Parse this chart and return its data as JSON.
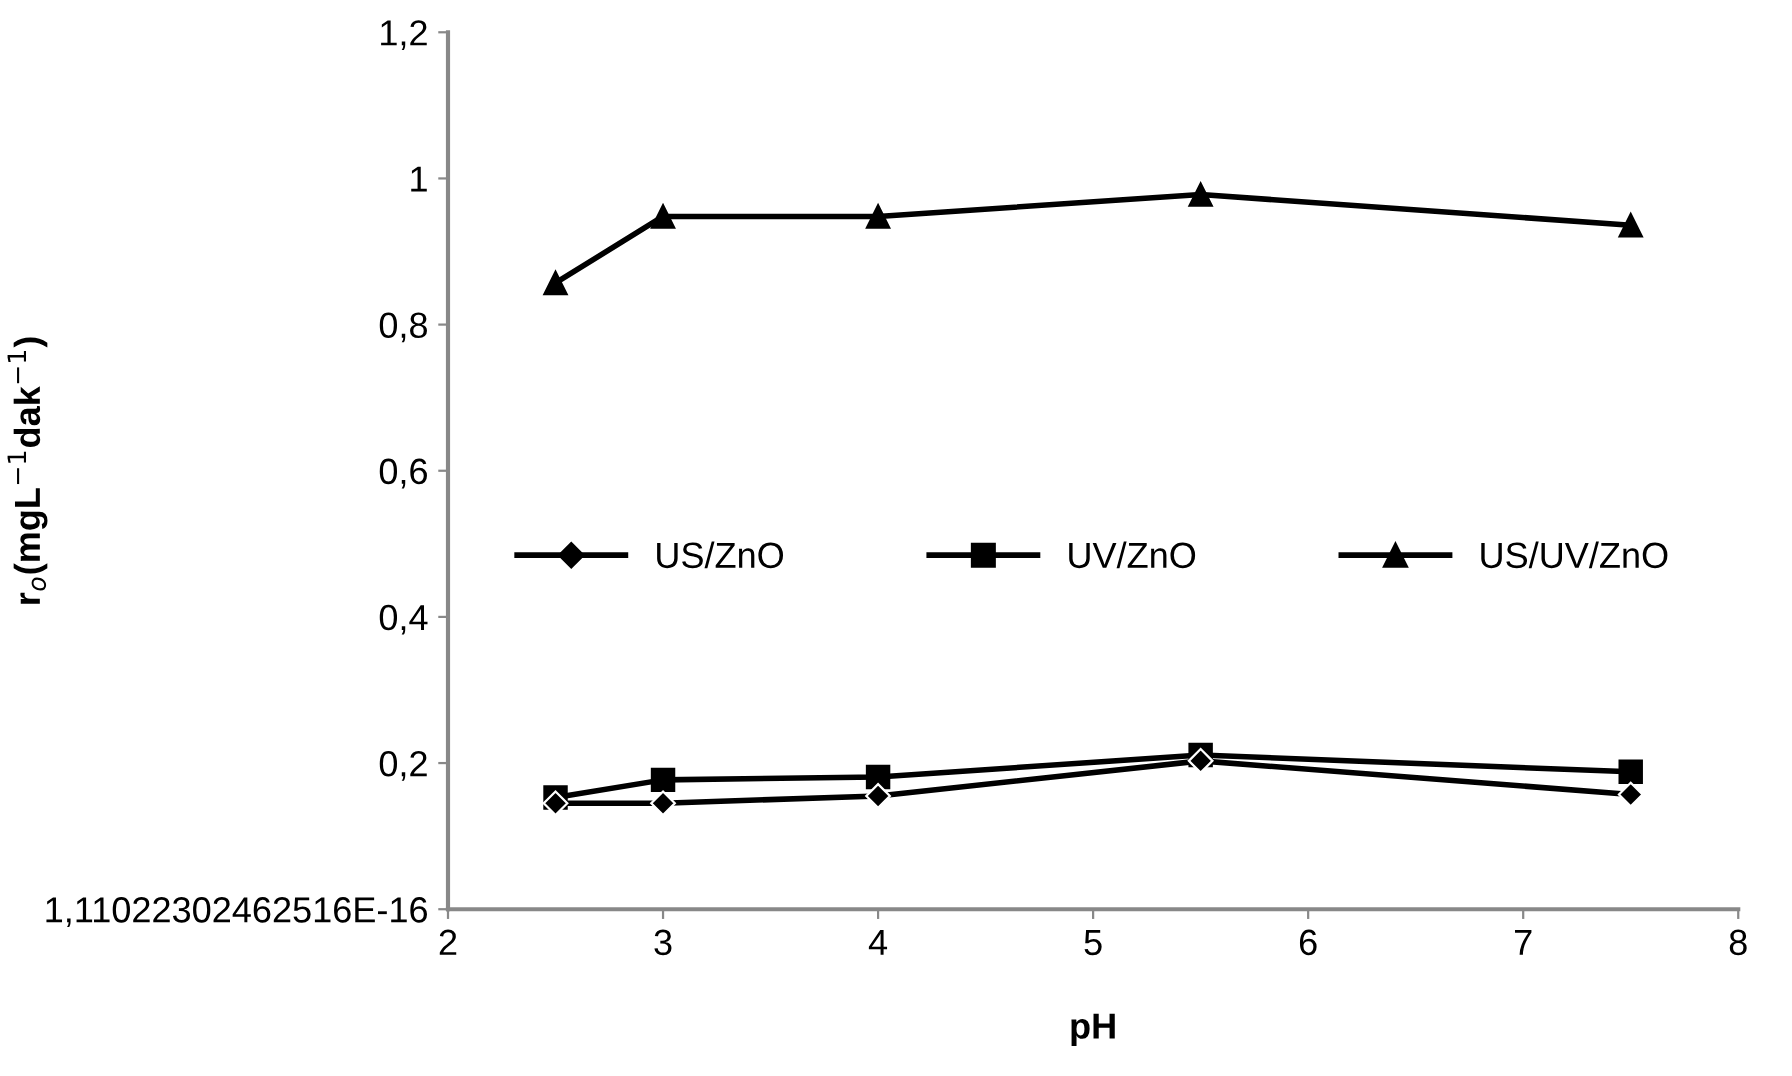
{
  "chart_data": {
    "type": "line",
    "xlabel": "pH",
    "ylabel": "r$_{o}$(mgL$^{−1}$dak$^{−1}$)",
    "x": [
      2.5,
      3,
      4,
      5.5,
      7.5
    ],
    "series": [
      {
        "name": "US/ZnO",
        "color": "#000000",
        "marker": "diamond",
        "values": [
          0.145,
          0.145,
          0.155,
          0.203,
          0.157
        ]
      },
      {
        "name": "UV/ZnO",
        "color": "#000000",
        "marker": "square",
        "values": [
          0.153,
          0.177,
          0.181,
          0.211,
          0.188
        ]
      },
      {
        "name": "US/UV/ZnO",
        "color": "#000000",
        "marker": "triangle",
        "values": [
          0.857,
          0.948,
          0.948,
          0.978,
          0.936
        ]
      }
    ],
    "xlim": [
      2,
      8
    ],
    "xticks": [
      2,
      3,
      4,
      5,
      6,
      7,
      8
    ],
    "ylim": [
      0,
      1.2
    ],
    "yticks": [
      {
        "value": 0,
        "label": "1,11022302462516E-16"
      },
      {
        "value": 0.2,
        "label": "0,2"
      },
      {
        "value": 0.4,
        "label": "0,4"
      },
      {
        "value": 0.6,
        "label": "0,6"
      },
      {
        "value": 0.8,
        "label": "0,8"
      },
      {
        "value": 1,
        "label": "1"
      },
      {
        "value": 1.2,
        "label": "1,2"
      }
    ],
    "grid": false,
    "legend": "center",
    "line_style": "solid"
  }
}
